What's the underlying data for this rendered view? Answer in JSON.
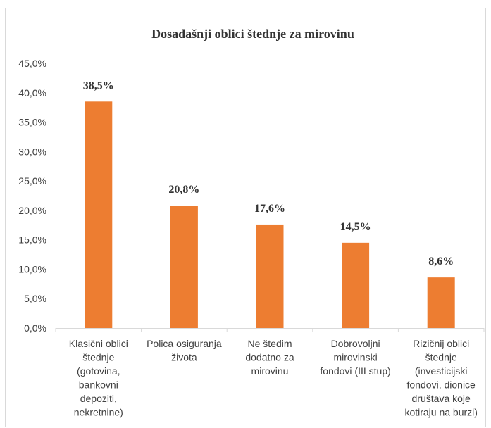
{
  "chart_data": {
    "type": "bar",
    "title": "Dosadašnji  oblici štednje  za mirovinu",
    "categories": [
      [
        "Klasični oblici",
        "štednje",
        "(gotovina,",
        "bankovni",
        "depoziti,",
        "nekretnine)"
      ],
      [
        "Polica osiguranja",
        "života"
      ],
      [
        "Ne štedim",
        "dodatno za",
        "mirovinu"
      ],
      [
        "Dobrovoljni",
        "mirovinski",
        "fondovi (III stup)"
      ],
      [
        "Rizičnij oblici",
        "štednje",
        "(investicijski",
        "fondovi, dionice",
        "društava koje",
        "kotiraju na burzi)"
      ]
    ],
    "values": [
      38.5,
      20.8,
      17.6,
      14.5,
      8.6
    ],
    "data_labels": [
      "38,5%",
      "20,8%",
      "17,6%",
      "14,5%",
      "8,6%"
    ],
    "yticks": [
      "0,0%",
      "5,0%",
      "10,0%",
      "15,0%",
      "20,0%",
      "25,0%",
      "30,0%",
      "35,0%",
      "40,0%",
      "45,0%"
    ],
    "ylim": [
      0,
      45
    ],
    "xlabel": "",
    "ylabel": "",
    "grid": false,
    "colors": {
      "bar": "#ED7D31",
      "axis": "#D9D9D9",
      "border": "#D9D9D9"
    }
  }
}
